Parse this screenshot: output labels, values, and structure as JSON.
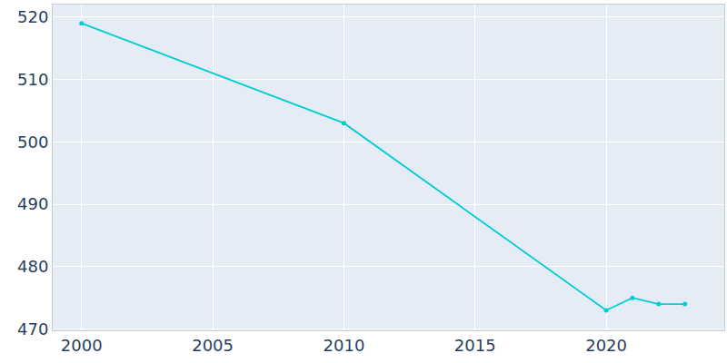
{
  "chart_data": {
    "type": "line",
    "x": [
      2000,
      2010,
      2020,
      2021,
      2022,
      2023
    ],
    "values": [
      519,
      503,
      473,
      475,
      474,
      474
    ],
    "color": "#00ced1",
    "marker": "circle",
    "xlim": [
      1998.9,
      2024.5
    ],
    "xticks": [
      2000,
      2005,
      2010,
      2015,
      2020
    ],
    "ylim": [
      469.8,
      522
    ],
    "yticks": [
      470,
      480,
      490,
      500,
      510,
      520
    ],
    "grid": true
  }
}
